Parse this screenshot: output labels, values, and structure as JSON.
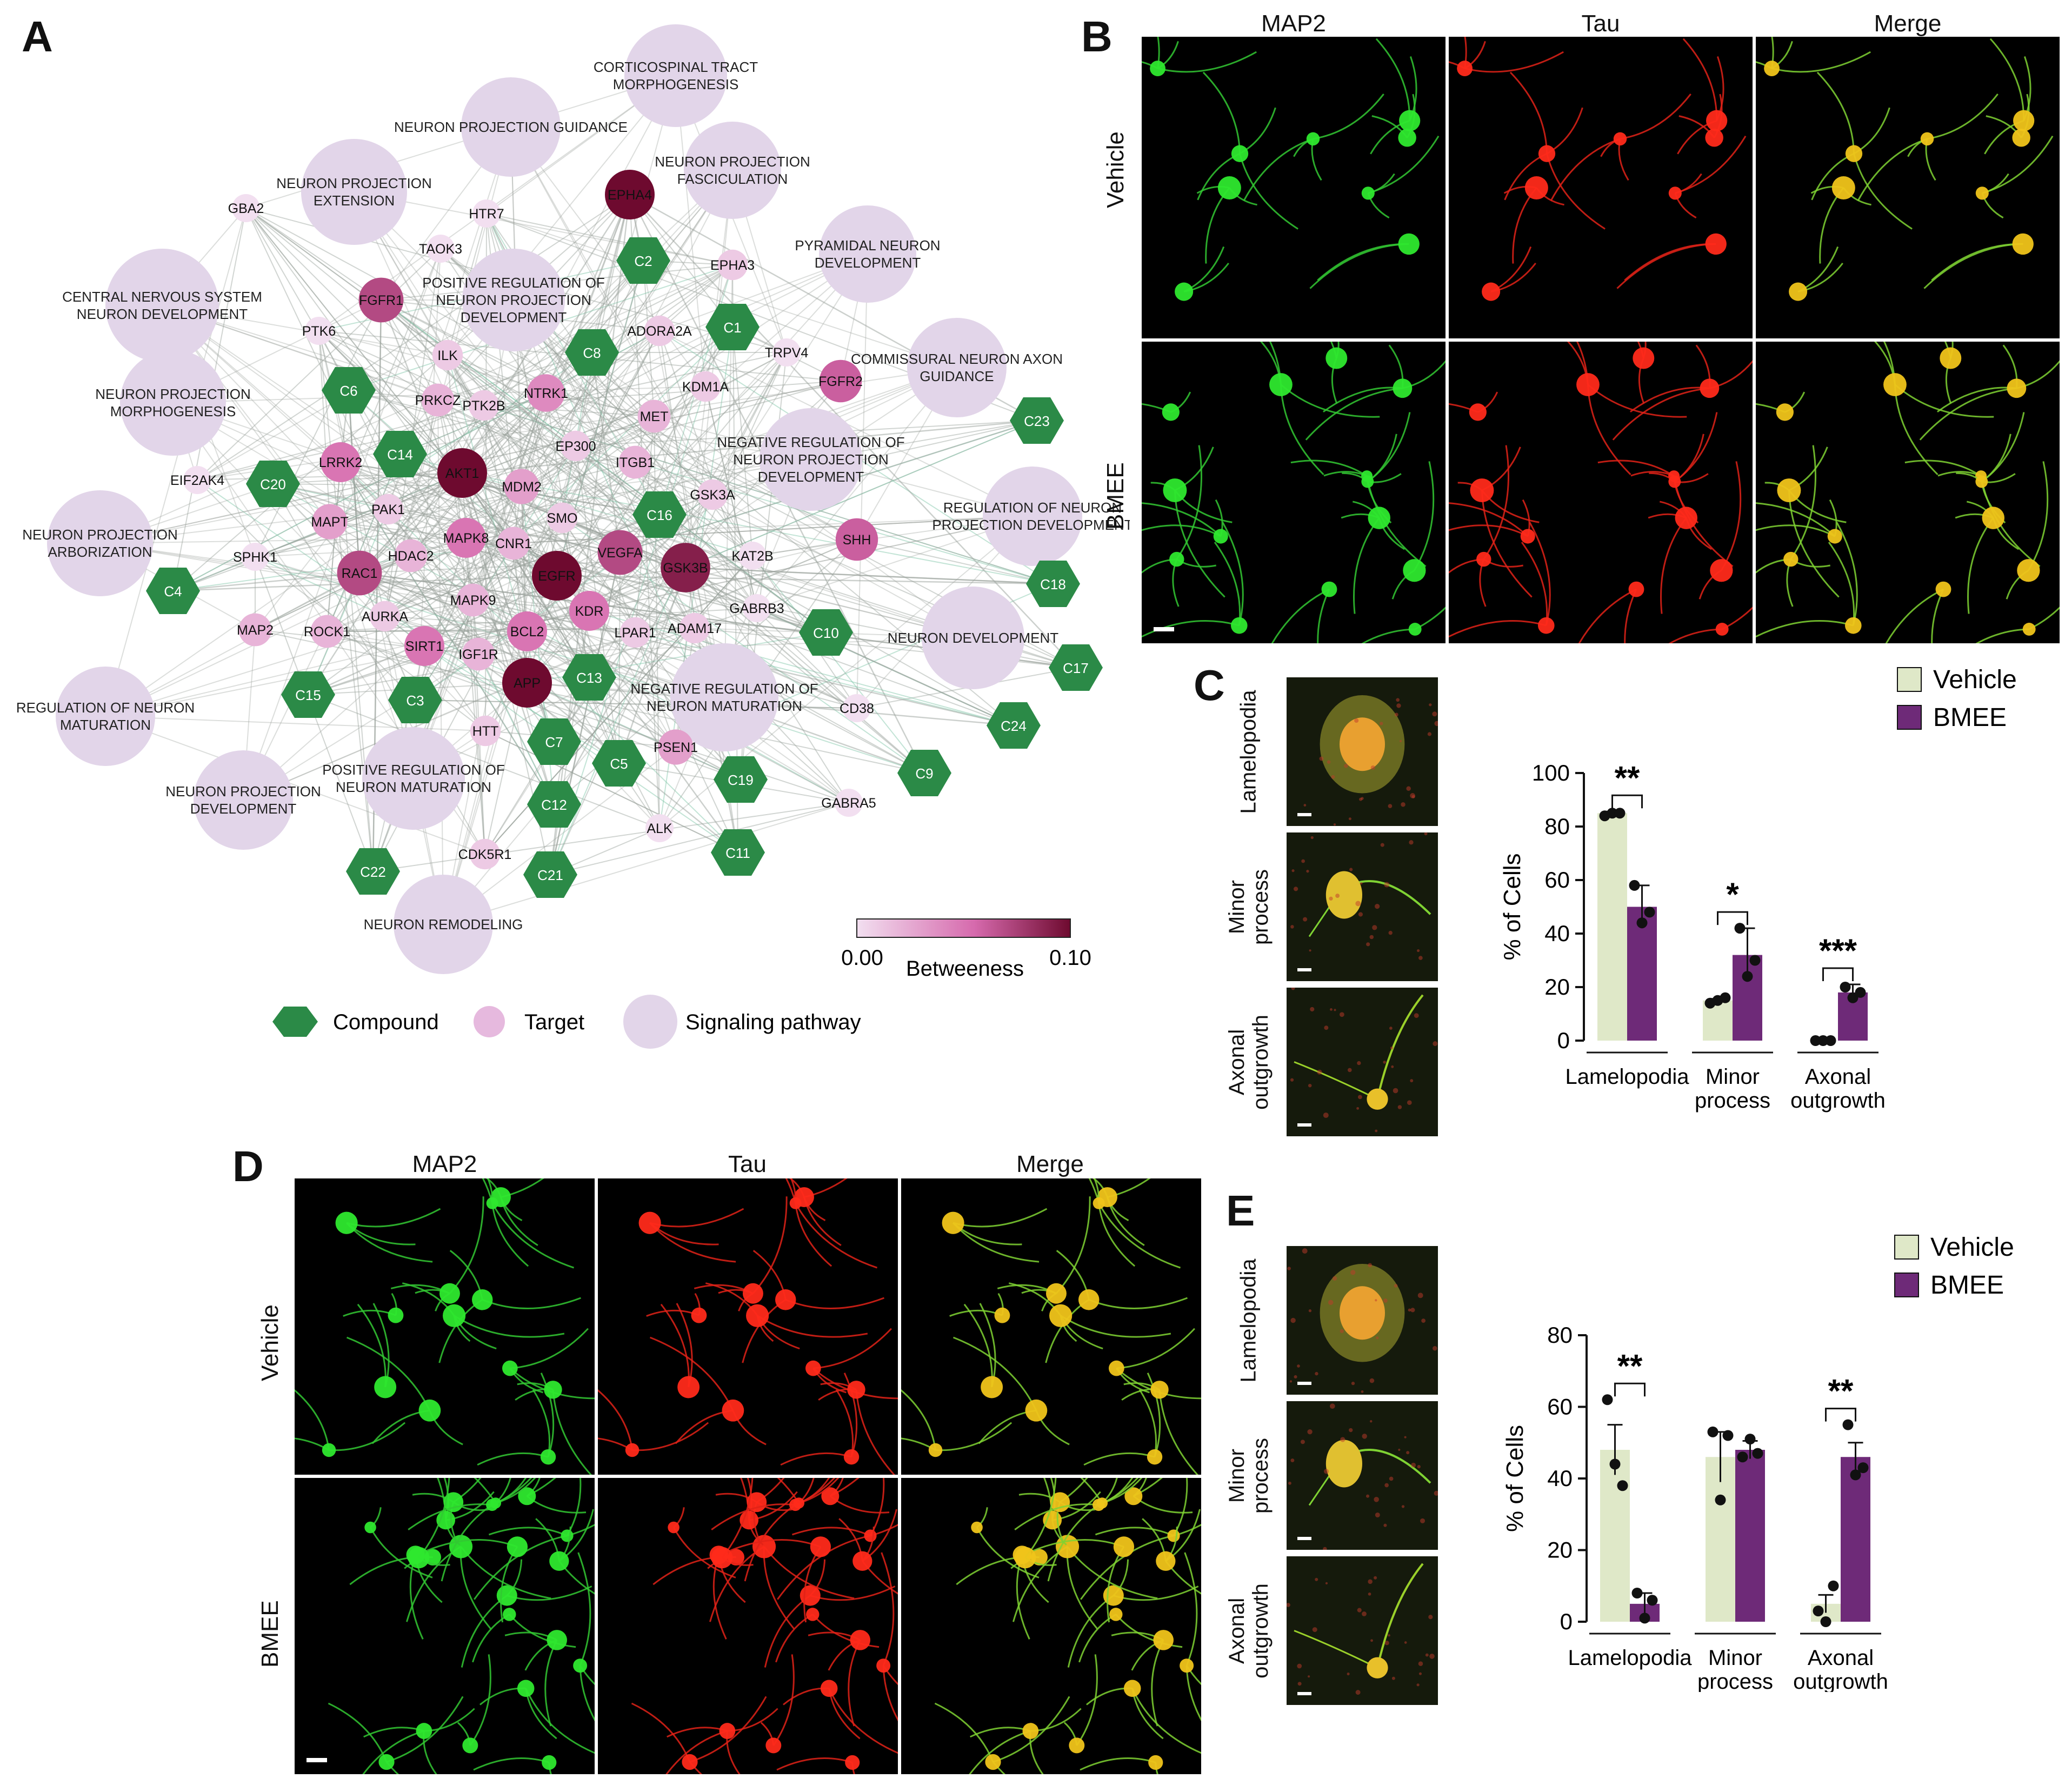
{
  "panels": {
    "A": "A",
    "B": "B",
    "C": "C",
    "D": "D",
    "E": "E"
  },
  "network": {
    "pathways": [
      {
        "id": "p1",
        "label": [
          "CORTICOSPINAL TRACT",
          "MORPHOGENESIS"
        ]
      },
      {
        "id": "p2",
        "label": [
          "NEURON PROJECTION GUIDANCE"
        ]
      },
      {
        "id": "p3",
        "label": [
          "NEURON PROJECTION",
          "FASCICULATION"
        ]
      },
      {
        "id": "p4",
        "label": [
          "NEURON PROJECTION",
          "EXTENSION"
        ]
      },
      {
        "id": "p5",
        "label": [
          "PYRAMIDAL NEURON",
          "DEVELOPMENT"
        ]
      },
      {
        "id": "p6",
        "label": [
          "CENTRAL NERVOUS SYSTEM",
          "NEURON DEVELOPMENT"
        ]
      },
      {
        "id": "p7",
        "label": [
          "POSITIVE REGULATION OF",
          "NEURON PROJECTION",
          "DEVELOPMENT"
        ]
      },
      {
        "id": "p8",
        "label": [
          "COMMISSURAL NEURON AXON",
          "GUIDANCE"
        ]
      },
      {
        "id": "p9",
        "label": [
          "NEURON PROJECTION",
          "MORPHOGENESIS"
        ]
      },
      {
        "id": "p10",
        "label": [
          "NEGATIVE REGULATION OF",
          "NEURON PROJECTION",
          "DEVELOPMENT"
        ]
      },
      {
        "id": "p11",
        "label": [
          "NEURON PROJECTION",
          "ARBORIZATION"
        ]
      },
      {
        "id": "p12",
        "label": [
          "REGULATION OF NEURON",
          "PROJECTION DEVELOPMENT"
        ]
      },
      {
        "id": "p13",
        "label": [
          "NEURON DEVELOPMENT"
        ]
      },
      {
        "id": "p14",
        "label": [
          "REGULATION OF NEURON",
          "MATURATION"
        ]
      },
      {
        "id": "p15",
        "label": [
          "NEGATIVE REGULATION OF",
          "NEURON MATURATION"
        ]
      },
      {
        "id": "p16",
        "label": [
          "NEURON PROJECTION",
          "DEVELOPMENT"
        ]
      },
      {
        "id": "p17",
        "label": [
          "POSITIVE REGULATION OF",
          "NEURON MATURATION"
        ]
      },
      {
        "id": "p18",
        "label": [
          "NEURON REMODELING"
        ]
      }
    ],
    "targets": [
      {
        "label": "GBA2",
        "b": 0.0
      },
      {
        "label": "HTR7",
        "b": 0.0
      },
      {
        "label": "EPHA4",
        "b": 0.1
      },
      {
        "label": "TAOK3",
        "b": 0.0
      },
      {
        "label": "EPHA3",
        "b": 0.01
      },
      {
        "label": "FGFR1",
        "b": 0.07
      },
      {
        "label": "PTK6",
        "b": 0.0
      },
      {
        "label": "ADORA2A",
        "b": 0.01
      },
      {
        "label": "TRPV4",
        "b": 0.0
      },
      {
        "label": "ILK",
        "b": 0.01
      },
      {
        "label": "FGFR2",
        "b": 0.06
      },
      {
        "label": "KDM1A",
        "b": 0.01
      },
      {
        "label": "PRKCZ",
        "b": 0.02
      },
      {
        "label": "PTK2B",
        "b": 0.01
      },
      {
        "label": "NTRK1",
        "b": 0.04
      },
      {
        "label": "MET",
        "b": 0.02
      },
      {
        "label": "EP300",
        "b": 0.01
      },
      {
        "label": "ITGB1",
        "b": 0.02
      },
      {
        "label": "LRRK2",
        "b": 0.05
      },
      {
        "label": "AKT1",
        "b": 0.1
      },
      {
        "label": "EIF2AK4",
        "b": 0.0
      },
      {
        "label": "MDM2",
        "b": 0.03
      },
      {
        "label": "GSK3A",
        "b": 0.01
      },
      {
        "label": "PAK1",
        "b": 0.01
      },
      {
        "label": "SMO",
        "b": 0.01
      },
      {
        "label": "MAPT",
        "b": 0.03
      },
      {
        "label": "CNR1",
        "b": 0.02
      },
      {
        "label": "MAPK8",
        "b": 0.05
      },
      {
        "label": "SHH",
        "b": 0.06
      },
      {
        "label": "KAT2B",
        "b": 0.0
      },
      {
        "label": "SPHK1",
        "b": 0.0
      },
      {
        "label": "HDAC2",
        "b": 0.02
      },
      {
        "label": "VEGFA",
        "b": 0.07
      },
      {
        "label": "GSK3B",
        "b": 0.09
      },
      {
        "label": "RAC1",
        "b": 0.07
      },
      {
        "label": "EGFR",
        "b": 0.1
      },
      {
        "label": "MAPK9",
        "b": 0.02
      },
      {
        "label": "GABRB3",
        "b": 0.0
      },
      {
        "label": "AURKA",
        "b": 0.01
      },
      {
        "label": "KDR",
        "b": 0.05
      },
      {
        "label": "ROCK1",
        "b": 0.02
      },
      {
        "label": "BCL2",
        "b": 0.05
      },
      {
        "label": "ADAM17",
        "b": 0.01
      },
      {
        "label": "MAP2",
        "b": 0.02
      },
      {
        "label": "SIRT1",
        "b": 0.05
      },
      {
        "label": "IGF1R",
        "b": 0.02
      },
      {
        "label": "LPAR1",
        "b": 0.01
      },
      {
        "label": "APP",
        "b": 0.1
      },
      {
        "label": "CD38",
        "b": 0.0
      },
      {
        "label": "HTT",
        "b": 0.01
      },
      {
        "label": "PSEN1",
        "b": 0.03
      },
      {
        "label": "GABRA5",
        "b": 0.0
      },
      {
        "label": "ALK",
        "b": 0.0
      },
      {
        "label": "CDK5R1",
        "b": 0.01
      }
    ],
    "compounds": [
      "C2",
      "C1",
      "C8",
      "C6",
      "C14",
      "C20",
      "C16",
      "C4",
      "C13",
      "C3",
      "C15",
      "C7",
      "C5",
      "C19",
      "C12",
      "C21",
      "C22",
      "C11",
      "C9",
      "C10",
      "C23",
      "C18",
      "C17",
      "C24"
    ],
    "colorbar": {
      "min_label": "0.00",
      "max_label": "0.10",
      "title": "Betweeness",
      "min_color": "#f2dff0",
      "mid_color": "#d66aad",
      "max_color": "#6e0a2f"
    },
    "legend": {
      "compound": "Compound",
      "target": "Target",
      "pathway": "Signaling pathway"
    },
    "colors": {
      "compound": "#2b8a47",
      "pathway": "#e2d5e9",
      "edge": "#9aa19c",
      "edge_accent": "#7bc4a4"
    }
  },
  "panelB": {
    "columns": [
      "MAP2",
      "Tau",
      "Merge"
    ],
    "rows": [
      "Vehicle",
      "BMEE"
    ]
  },
  "panelD": {
    "columns": [
      "MAP2",
      "Tau",
      "Merge"
    ],
    "rows": [
      "Vehicle",
      "BMEE"
    ]
  },
  "panelC": {
    "thumb_labels": [
      [
        "Lamelopodia"
      ],
      [
        "Minor",
        "process"
      ],
      [
        "Axonal",
        "outgrowth"
      ]
    ],
    "legend": [
      "Vehicle",
      "BMEE"
    ]
  },
  "panelE": {
    "thumb_labels": [
      [
        "Lamelopodia"
      ],
      [
        "Minor",
        "process"
      ],
      [
        "Axonal",
        "outgrowth"
      ]
    ],
    "legend": [
      "Vehicle",
      "BMEE"
    ]
  },
  "chart_data": [
    {
      "type": "bar",
      "panel": "C",
      "categories": [
        [
          "Lamelopodia"
        ],
        [
          "Minor",
          "process"
        ],
        [
          "Axonal",
          "outgrowth"
        ]
      ],
      "series": [
        {
          "name": "Vehicle",
          "color": "#dfe8c8",
          "values": [
            85,
            15,
            0
          ],
          "sem": [
            0.6,
            0.6,
            0
          ],
          "points": [
            [
              84,
              85,
              85
            ],
            [
              14,
              15,
              16
            ],
            [
              0,
              0,
              0
            ]
          ]
        },
        {
          "name": "BMEE",
          "color": "#6e2a78",
          "values": [
            50,
            32,
            18
          ],
          "sem": [
            8,
            10,
            3
          ],
          "points": [
            [
              58,
              44,
              48
            ],
            [
              42,
              24,
              30
            ],
            [
              20,
              16,
              18
            ]
          ]
        }
      ],
      "significance": [
        "**",
        "*",
        "***"
      ],
      "ylabel": "% of Cells",
      "ylim": [
        0,
        100
      ],
      "yticks": [
        0,
        20,
        40,
        60,
        80,
        100
      ]
    },
    {
      "type": "bar",
      "panel": "E",
      "categories": [
        [
          "Lamelopodia"
        ],
        [
          "Minor",
          "process"
        ],
        [
          "Axonal",
          "outgrowth"
        ]
      ],
      "series": [
        {
          "name": "Vehicle",
          "color": "#dfe8c8",
          "values": [
            48,
            46,
            5
          ],
          "sem": [
            7,
            7,
            2.5
          ],
          "points": [
            [
              62,
              44,
              38
            ],
            [
              53,
              34,
              52
            ],
            [
              3,
              0,
              10
            ]
          ]
        },
        {
          "name": "BMEE",
          "color": "#6e2a78",
          "values": [
            5,
            48,
            46
          ],
          "sem": [
            3,
            2.5,
            4
          ],
          "points": [
            [
              8,
              1,
              6
            ],
            [
              46,
              51,
              47
            ],
            [
              55,
              41,
              43
            ]
          ]
        }
      ],
      "significance": [
        "**",
        "",
        "**"
      ],
      "ylabel": "% of Cells",
      "ylim": [
        0,
        80
      ],
      "yticks": [
        0,
        20,
        40,
        60,
        80
      ]
    }
  ]
}
